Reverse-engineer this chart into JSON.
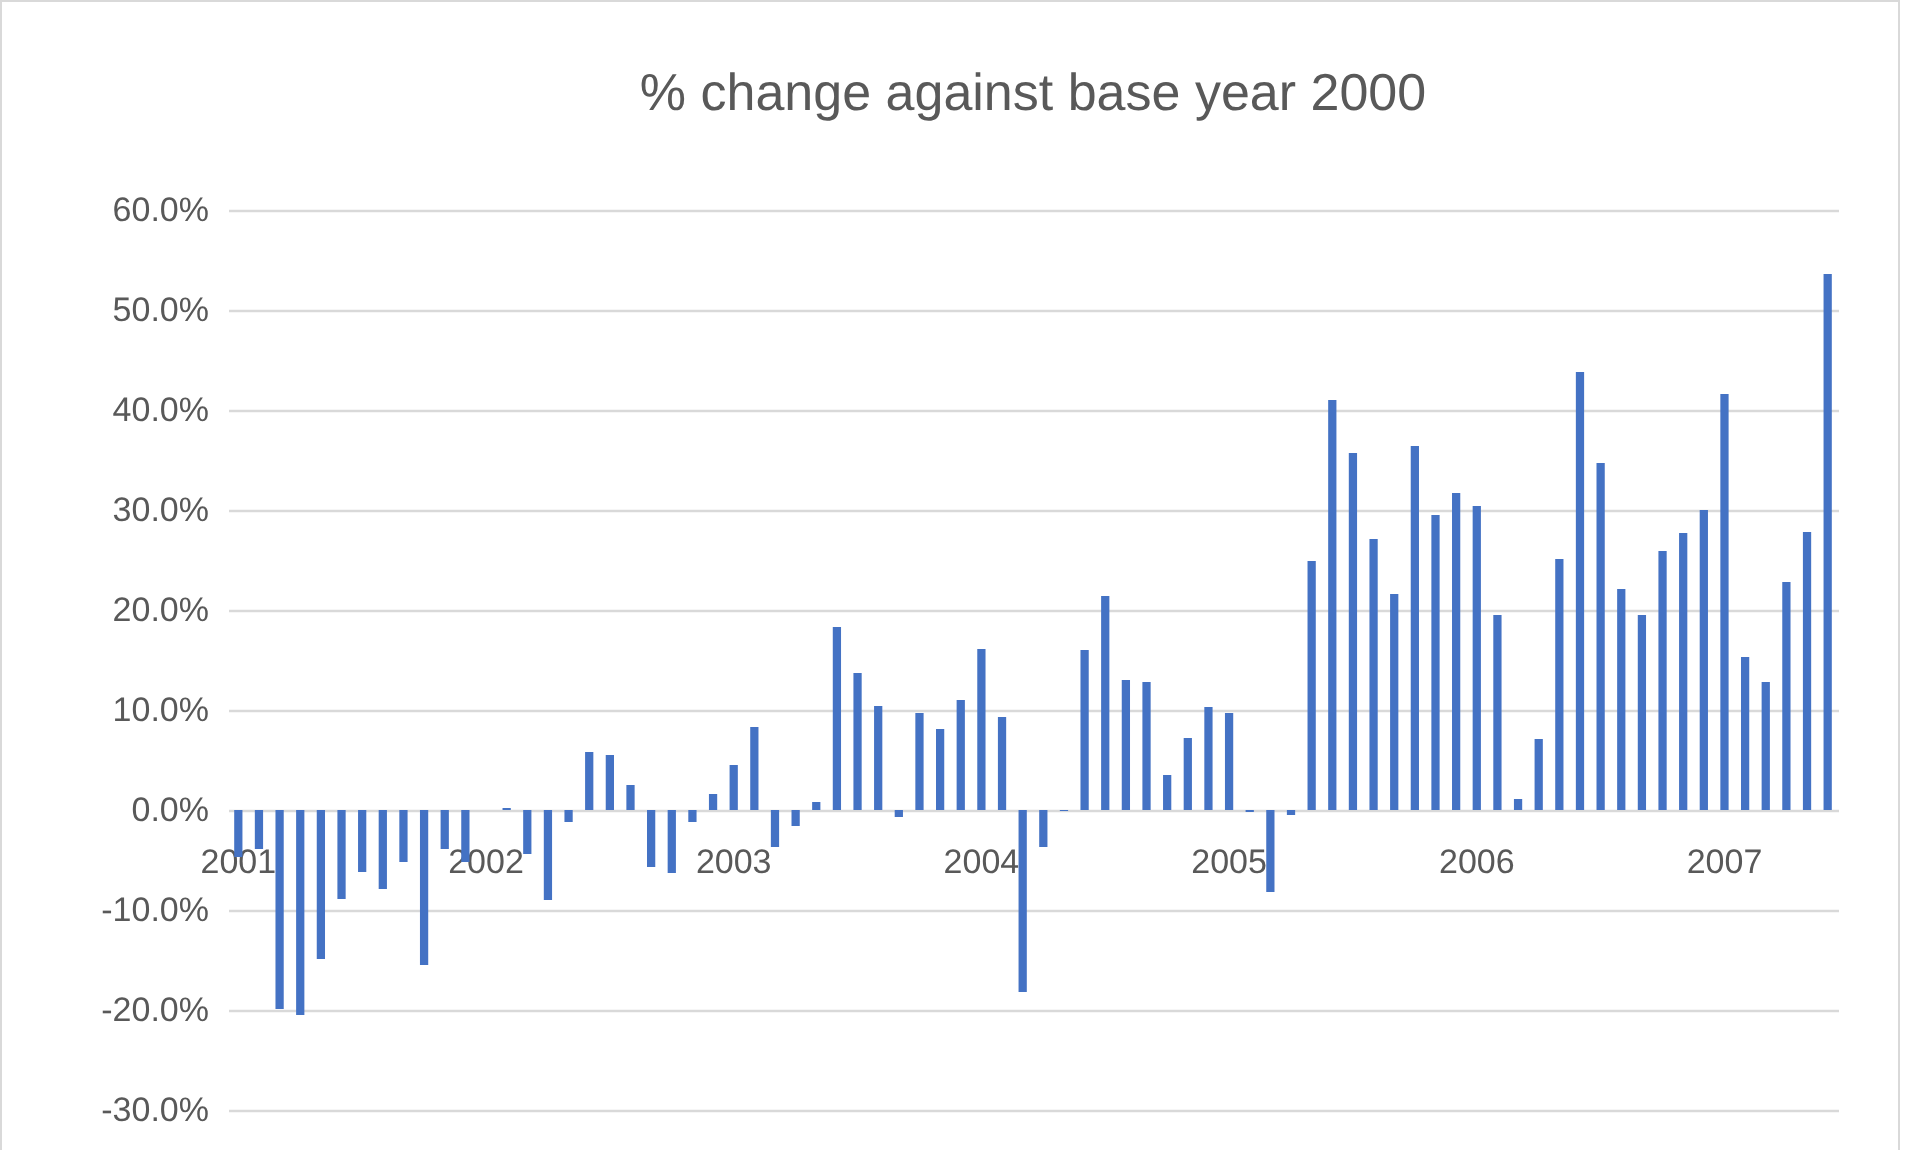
{
  "chart_data": {
    "type": "bar",
    "title": "% change against base year 2000",
    "categories": [
      "2001",
      null,
      null,
      null,
      null,
      null,
      null,
      null,
      null,
      null,
      null,
      null,
      "2002",
      null,
      null,
      null,
      null,
      null,
      null,
      null,
      null,
      null,
      null,
      null,
      "2003",
      null,
      null,
      null,
      null,
      null,
      null,
      null,
      null,
      null,
      null,
      null,
      "2004",
      null,
      null,
      null,
      null,
      null,
      null,
      null,
      null,
      null,
      null,
      null,
      "2005",
      null,
      null,
      null,
      null,
      null,
      null,
      null,
      null,
      null,
      null,
      null,
      "2006",
      null,
      null,
      null,
      null,
      null,
      null,
      null,
      null,
      null,
      null,
      null,
      "2007",
      null,
      null,
      null,
      null,
      null
    ],
    "values": [
      -4.7,
      -3.9,
      -19.9,
      -20.5,
      -14.9,
      -8.9,
      -6.2,
      -7.9,
      -5.2,
      -15.5,
      -3.9,
      -5.2,
      0,
      0.2,
      -4.4,
      -9.0,
      -1.2,
      5.8,
      5.5,
      2.5,
      -5.7,
      -6.3,
      -1.2,
      1.6,
      4.5,
      8.3,
      -3.7,
      -1.6,
      0.8,
      18.3,
      13.7,
      10.4,
      -0.7,
      9.7,
      8.1,
      11.0,
      16.1,
      9.3,
      -18.2,
      -3.7,
      -0.1,
      16.0,
      21.4,
      13.0,
      12.8,
      3.5,
      7.2,
      10.3,
      9.7,
      -0.2,
      -8.2,
      -0.5,
      24.9,
      41.0,
      35.7,
      27.1,
      21.6,
      36.4,
      29.5,
      31.7,
      30.4,
      19.5,
      1.1,
      7.1,
      25.1,
      43.8,
      34.7,
      22.1,
      19.5,
      25.9,
      27.7,
      30.0,
      41.6,
      15.3,
      12.8,
      22.8,
      27.8,
      53.6
    ],
    "color": "#4472c4",
    "ylim": [
      -30,
      60
    ],
    "yticks": [
      {
        "value": -30,
        "label": "-30.0%"
      },
      {
        "value": -20,
        "label": "-20.0%"
      },
      {
        "value": -10,
        "label": "-10.0%"
      },
      {
        "value": 0,
        "label": "0.0%"
      },
      {
        "value": 10,
        "label": "10.0%"
      },
      {
        "value": 20,
        "label": "20.0%"
      },
      {
        "value": 30,
        "label": "30.0%"
      },
      {
        "value": 40,
        "label": "40.0%"
      },
      {
        "value": 50,
        "label": "50.0%"
      },
      {
        "value": 60,
        "label": "60.0%"
      }
    ],
    "grid": true
  }
}
